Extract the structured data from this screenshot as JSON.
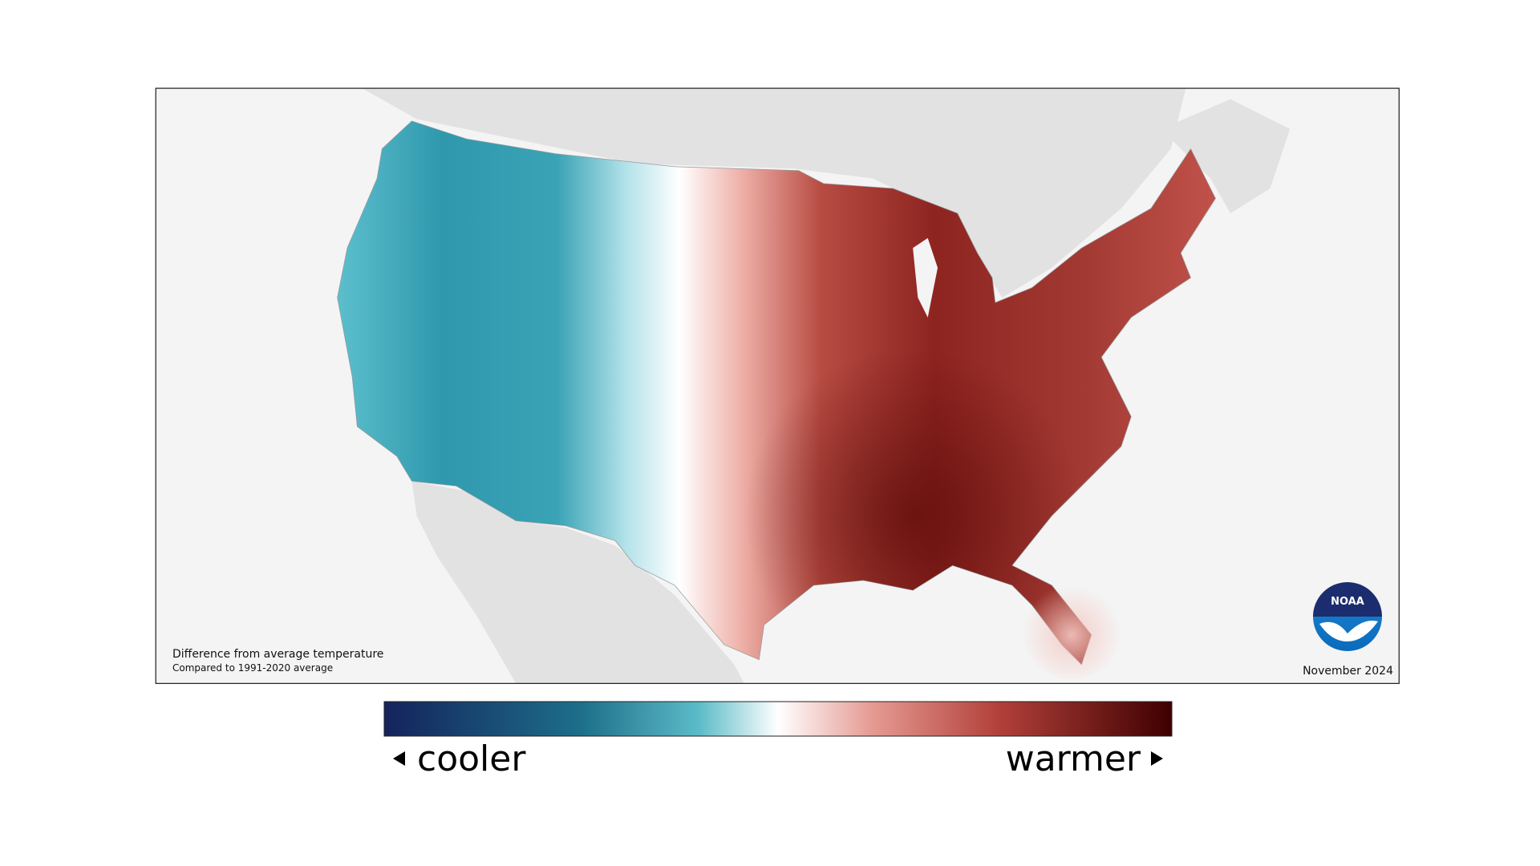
{
  "map": {
    "caption": {
      "title": "Difference from average temperature",
      "subtitle": "Compared to 1991-2020 average"
    },
    "date": "November 2024",
    "logo": "NOAA",
    "legend": {
      "low": "cooler",
      "high": "warmer"
    }
  }
}
